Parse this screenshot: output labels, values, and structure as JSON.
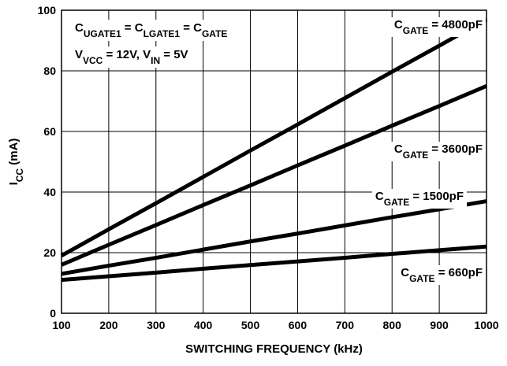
{
  "chart_data": {
    "type": "line",
    "x_label": "SWITCHING FREQUENCY (kHz)",
    "y_label": [
      {
        "text": "I"
      },
      {
        "text": "CC",
        "sub": true
      },
      {
        "text": " (mA)"
      }
    ],
    "annotations": [
      [
        {
          "text": "C"
        },
        {
          "text": "UGATE1",
          "sub": true
        },
        {
          "text": " = C"
        },
        {
          "text": "LGATE1",
          "sub": true
        },
        {
          "text": " = C"
        },
        {
          "text": "GATE",
          "sub": true
        }
      ],
      [
        {
          "text": "V"
        },
        {
          "text": "VCC",
          "sub": true
        },
        {
          "text": " = 12V, V"
        },
        {
          "text": "IN",
          "sub": true
        },
        {
          "text": " = 5V"
        }
      ]
    ],
    "x": [
      100,
      200,
      300,
      400,
      500,
      600,
      700,
      800,
      900,
      1000
    ],
    "series": [
      {
        "name": [
          {
            "text": "C"
          },
          {
            "text": "GATE",
            "sub": true
          },
          {
            "text": " = 4800pF"
          }
        ],
        "color": "#000000",
        "values": [
          19,
          27.7,
          36.3,
          45,
          53.7,
          62.3,
          71,
          79.7,
          88.3,
          97
        ]
      },
      {
        "name": [
          {
            "text": "C"
          },
          {
            "text": "GATE",
            "sub": true
          },
          {
            "text": " = 3600pF"
          }
        ],
        "color": "#000000",
        "values": [
          16,
          22.6,
          29.1,
          35.7,
          42.2,
          48.8,
          55.3,
          61.9,
          68.4,
          75
        ]
      },
      {
        "name": [
          {
            "text": "C"
          },
          {
            "text": "GATE",
            "sub": true
          },
          {
            "text": " = 1500pF"
          }
        ],
        "color": "#000000",
        "values": [
          13,
          15.7,
          18.3,
          21,
          23.7,
          26.3,
          29,
          31.7,
          34.3,
          37
        ]
      },
      {
        "name": [
          {
            "text": "C"
          },
          {
            "text": "GATE",
            "sub": true
          },
          {
            "text": " = 660pF"
          }
        ],
        "color": "#000000",
        "values": [
          11,
          12.2,
          13.4,
          14.7,
          15.9,
          17.1,
          18.3,
          19.6,
          20.8,
          22
        ]
      }
    ],
    "xlim": [
      100,
      1000
    ],
    "xticks": [
      100,
      200,
      300,
      400,
      500,
      600,
      700,
      800,
      900,
      1000
    ],
    "ylim": [
      0,
      100
    ],
    "yticks": [
      0,
      20,
      40,
      60,
      80,
      100
    ],
    "grid": true
  }
}
